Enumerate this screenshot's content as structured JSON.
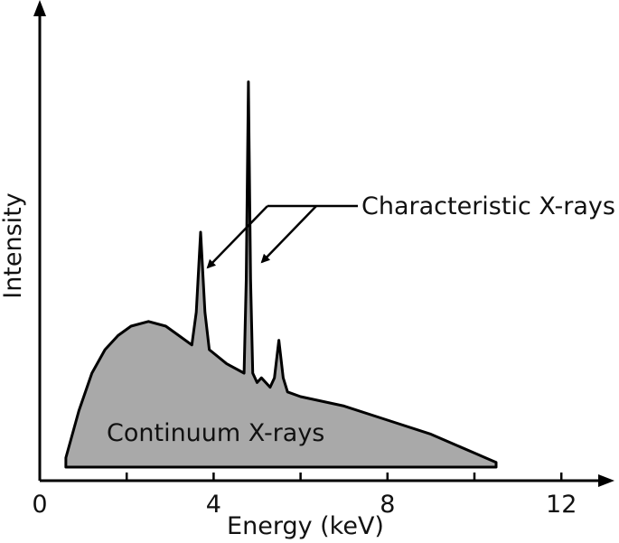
{
  "chart_data": {
    "type": "area",
    "title": "",
    "xlabel": "Energy (keV)",
    "ylabel": "Intensity",
    "xlim": [
      0,
      13
    ],
    "ylim": [
      0,
      100
    ],
    "x_ticks": [
      0,
      2,
      4,
      6,
      8,
      10,
      12
    ],
    "x_tick_labels": [
      {
        "x": 0,
        "label": "0"
      },
      {
        "x": 4,
        "label": "4"
      },
      {
        "x": 8,
        "label": "8"
      },
      {
        "x": 12,
        "label": "12"
      }
    ],
    "series": [
      {
        "x": [
          0.6,
          0.9,
          1.2,
          1.5,
          1.8,
          2.1,
          2.5,
          2.9,
          3.2,
          3.5,
          3.6,
          3.7,
          3.8,
          3.9,
          4.3,
          4.7,
          4.75,
          4.8,
          4.85,
          4.9,
          5.0,
          5.1,
          5.3,
          5.4,
          5.5,
          5.6,
          5.7,
          6.0,
          7.0,
          8.0,
          9.0,
          9.5,
          10.0,
          10.5
        ],
        "y": [
          2,
          12,
          20,
          25,
          28,
          30,
          31,
          30,
          28,
          26,
          33,
          50,
          33,
          25,
          22,
          20,
          40,
          82,
          40,
          20,
          18,
          19,
          17,
          19,
          27,
          19,
          16,
          15,
          13,
          10,
          7,
          5,
          3,
          1
        ],
        "fill": "#a9a9a9",
        "stroke": "#000000"
      }
    ],
    "annotations": [
      {
        "text": "Characteristic X-rays",
        "points_to_x": [
          3.7,
          4.8
        ]
      },
      {
        "text": "Continuum X-rays"
      }
    ]
  }
}
